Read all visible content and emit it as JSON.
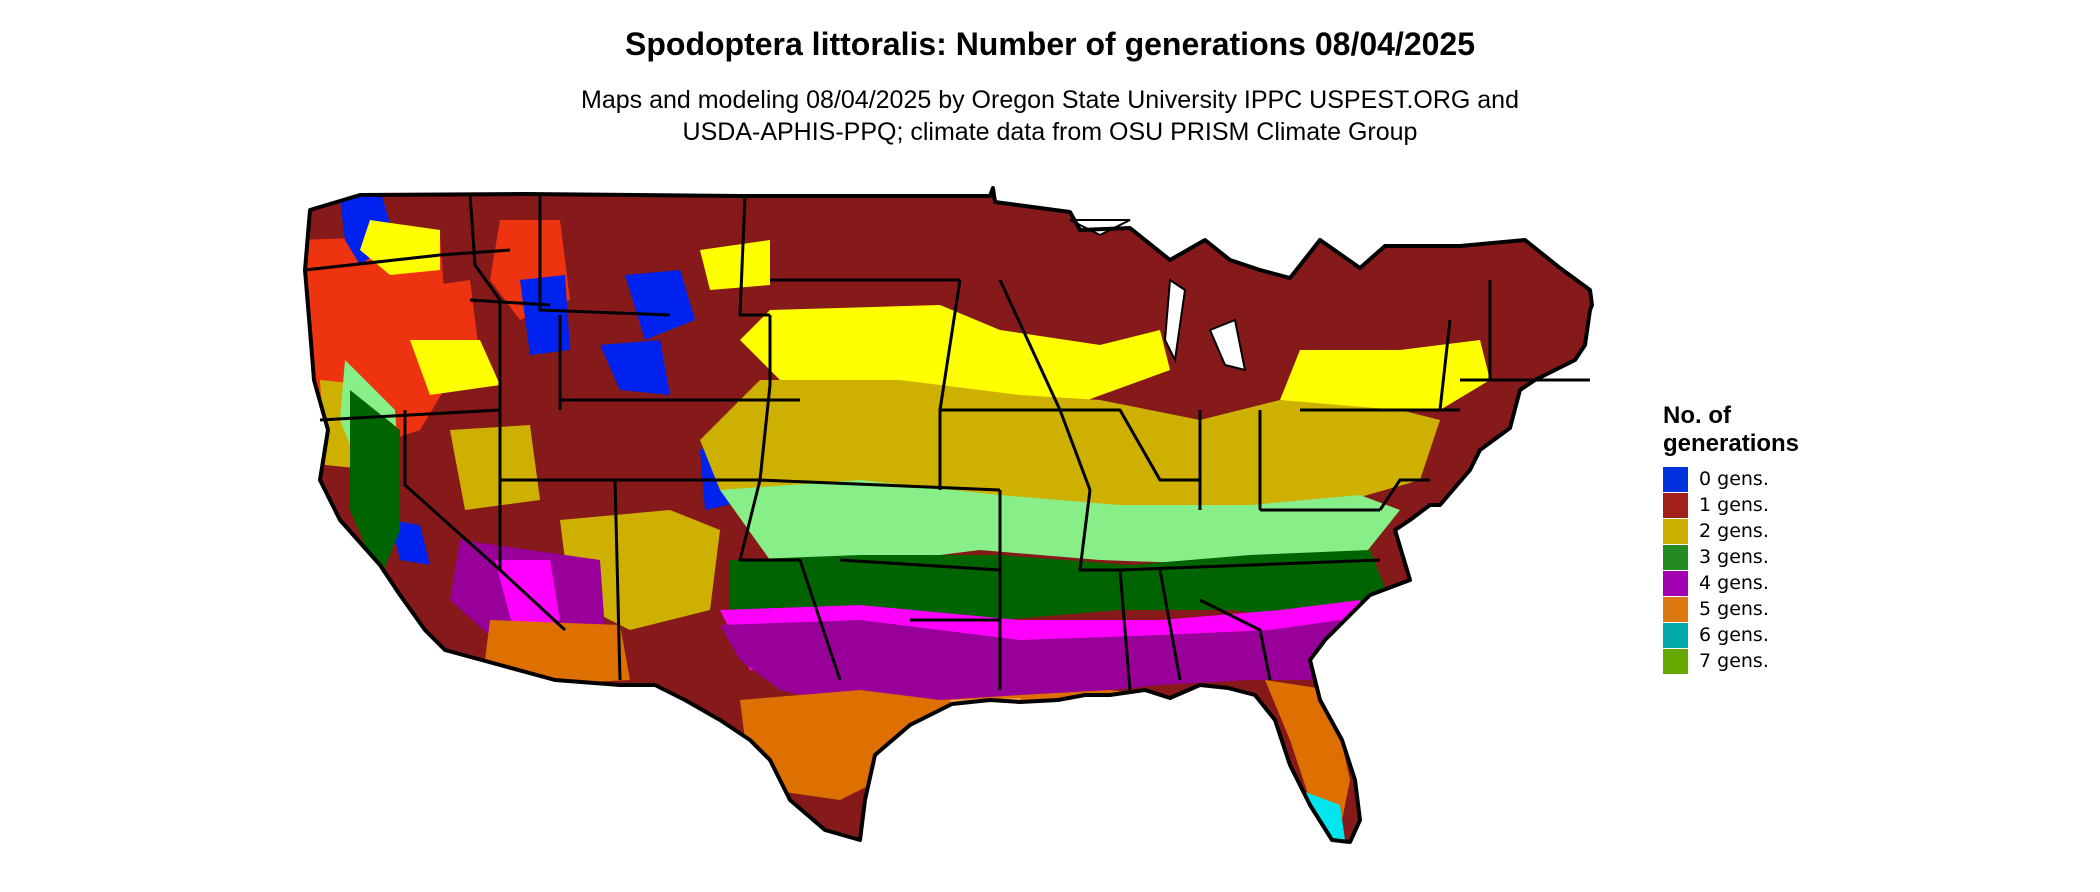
{
  "title": "Spodoptera littoralis: Number of generations 08/04/2025",
  "subtitle": {
    "line1": "Maps and modeling 08/04/2025 by Oregon State University IPPC USPEST.ORG and",
    "line2": "USDA-APHIS-PPQ; climate data from OSU PRISM Climate Group"
  },
  "legend": {
    "title_line1": "No. of",
    "title_line2": "generations",
    "items": [
      {
        "label": "0 gens.",
        "color": "#0033dd"
      },
      {
        "label": "1 gens.",
        "color": "#a51f1a"
      },
      {
        "label": "2 gens.",
        "color": "#ccb000"
      },
      {
        "label": "3 gens.",
        "color": "#228b22"
      },
      {
        "label": "4 gens.",
        "color": "#a000b0"
      },
      {
        "label": "5 gens.",
        "color": "#dd7711"
      },
      {
        "label": "6 gens.",
        "color": "#00a8a8"
      },
      {
        "label": "7 gens.",
        "color": "#66aa00"
      }
    ]
  },
  "map_colors": {
    "cold_blue": "#0022ee",
    "dark_red": "#861a1a",
    "orange_red": "#ee3311",
    "bright_yellow": "#ffff00",
    "mustard": "#cdb000",
    "light_green": "#88ee88",
    "dark_green": "#006400",
    "magenta": "#ff00ff",
    "purple": "#990099",
    "orange": "#dd7000",
    "light_orange": "#f4a460",
    "cyan": "#00e5ee"
  }
}
